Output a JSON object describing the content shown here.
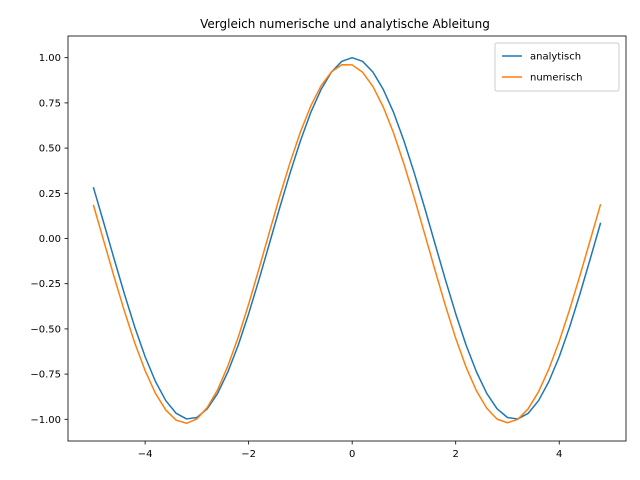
{
  "chart_data": {
    "type": "line",
    "title": "Vergleich numerische und analytische Ableitung",
    "xlabel": "",
    "ylabel": "",
    "xlim": [
      -5.49,
      5.29
    ],
    "ylim": [
      -1.12,
      1.12
    ],
    "xticks": [
      -4,
      -2,
      0,
      2,
      4
    ],
    "xtick_labels": [
      "−4",
      "−2",
      "0",
      "2",
      "4"
    ],
    "yticks": [
      -1.0,
      -0.75,
      -0.5,
      -0.25,
      0.0,
      0.25,
      0.5,
      0.75,
      1.0
    ],
    "ytick_labels": [
      "−1.00",
      "−0.75",
      "−0.50",
      "−0.25",
      "0.00",
      "0.25",
      "0.50",
      "0.75",
      "1.00"
    ],
    "grid": false,
    "legend_position": "top-right",
    "x": [
      -5.0,
      -4.8,
      -4.6,
      -4.4,
      -4.2,
      -4.0,
      -3.8,
      -3.6,
      -3.4,
      -3.2,
      -3.0,
      -2.8,
      -2.6,
      -2.4,
      -2.2,
      -2.0,
      -1.8,
      -1.6,
      -1.4,
      -1.2,
      -1.0,
      -0.8,
      -0.6,
      -0.4,
      -0.2,
      0.0,
      0.2,
      0.4,
      0.6,
      0.8,
      1.0,
      1.2,
      1.4,
      1.6,
      1.8,
      2.0,
      2.2,
      2.4,
      2.6,
      2.8,
      3.0,
      3.2,
      3.4,
      3.6,
      3.8,
      4.0,
      4.2,
      4.4,
      4.6,
      4.8
    ],
    "series": [
      {
        "name": "analytisch",
        "color": "#1f77b4",
        "values": [
          0.284,
          0.087,
          -0.112,
          -0.307,
          -0.49,
          -0.654,
          -0.791,
          -0.897,
          -0.967,
          -0.998,
          -0.99,
          -0.942,
          -0.857,
          -0.737,
          -0.589,
          -0.416,
          -0.227,
          -0.029,
          0.17,
          0.362,
          0.54,
          0.697,
          0.825,
          0.921,
          0.98,
          1.0,
          0.98,
          0.921,
          0.825,
          0.697,
          0.54,
          0.362,
          0.17,
          -0.029,
          -0.227,
          -0.416,
          -0.589,
          -0.737,
          -0.857,
          -0.942,
          -0.99,
          -0.998,
          -0.967,
          -0.897,
          -0.791,
          -0.654,
          -0.49,
          -0.307,
          -0.112,
          0.087
        ]
      },
      {
        "name": "numerisch",
        "color": "#ff7f0e",
        "values": [
          0.186,
          -0.013,
          -0.211,
          -0.402,
          -0.578,
          -0.731,
          -0.857,
          -0.949,
          -1.005,
          -1.022,
          -0.998,
          -0.935,
          -0.837,
          -0.704,
          -0.545,
          -0.363,
          -0.167,
          0.034,
          0.233,
          0.42,
          0.589,
          0.733,
          0.845,
          0.922,
          0.961,
          0.96,
          0.92,
          0.841,
          0.728,
          0.583,
          0.412,
          0.225,
          0.026,
          -0.175,
          -0.37,
          -0.552,
          -0.711,
          -0.842,
          -0.939,
          -0.999,
          -1.019,
          -1.0,
          -0.942,
          -0.848,
          -0.722,
          -0.568,
          -0.394,
          -0.205,
          -0.008,
          0.19
        ]
      }
    ]
  }
}
